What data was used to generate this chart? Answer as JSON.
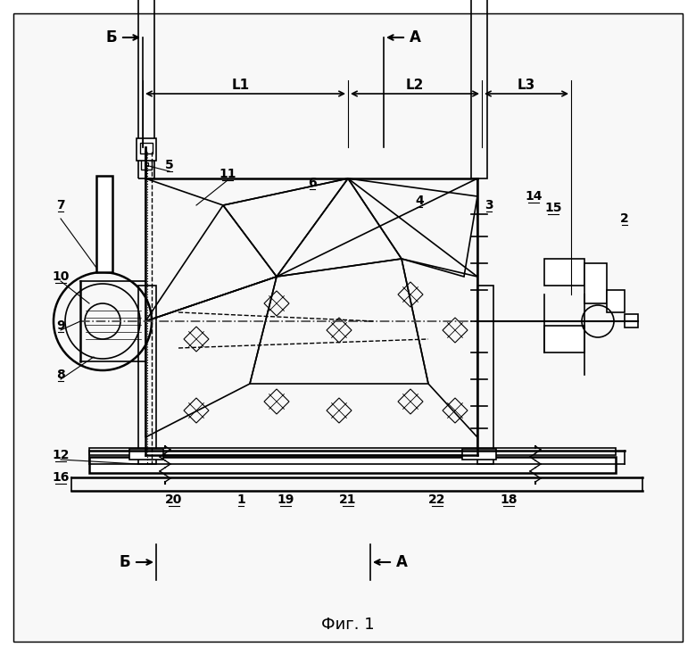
{
  "bg_color": "#ffffff",
  "line_color": "#000000",
  "fig_width": 7.8,
  "fig_height": 7.34,
  "title": "Фиг. 1",
  "labels": {
    "B_arrow": "Б",
    "A_arrow": "А",
    "L1": "L1",
    "L2": "L2",
    "L3": "L3",
    "B_bottom": "Б",
    "A_bottom": "А",
    "fig1": "Фиг. 1"
  },
  "part_numbers": [
    "1",
    "2",
    "3",
    "4",
    "5",
    "6",
    "7",
    "8",
    "9",
    "10",
    "11",
    "12",
    "14",
    "15",
    "16",
    "18",
    "19",
    "20",
    "21",
    "22"
  ]
}
